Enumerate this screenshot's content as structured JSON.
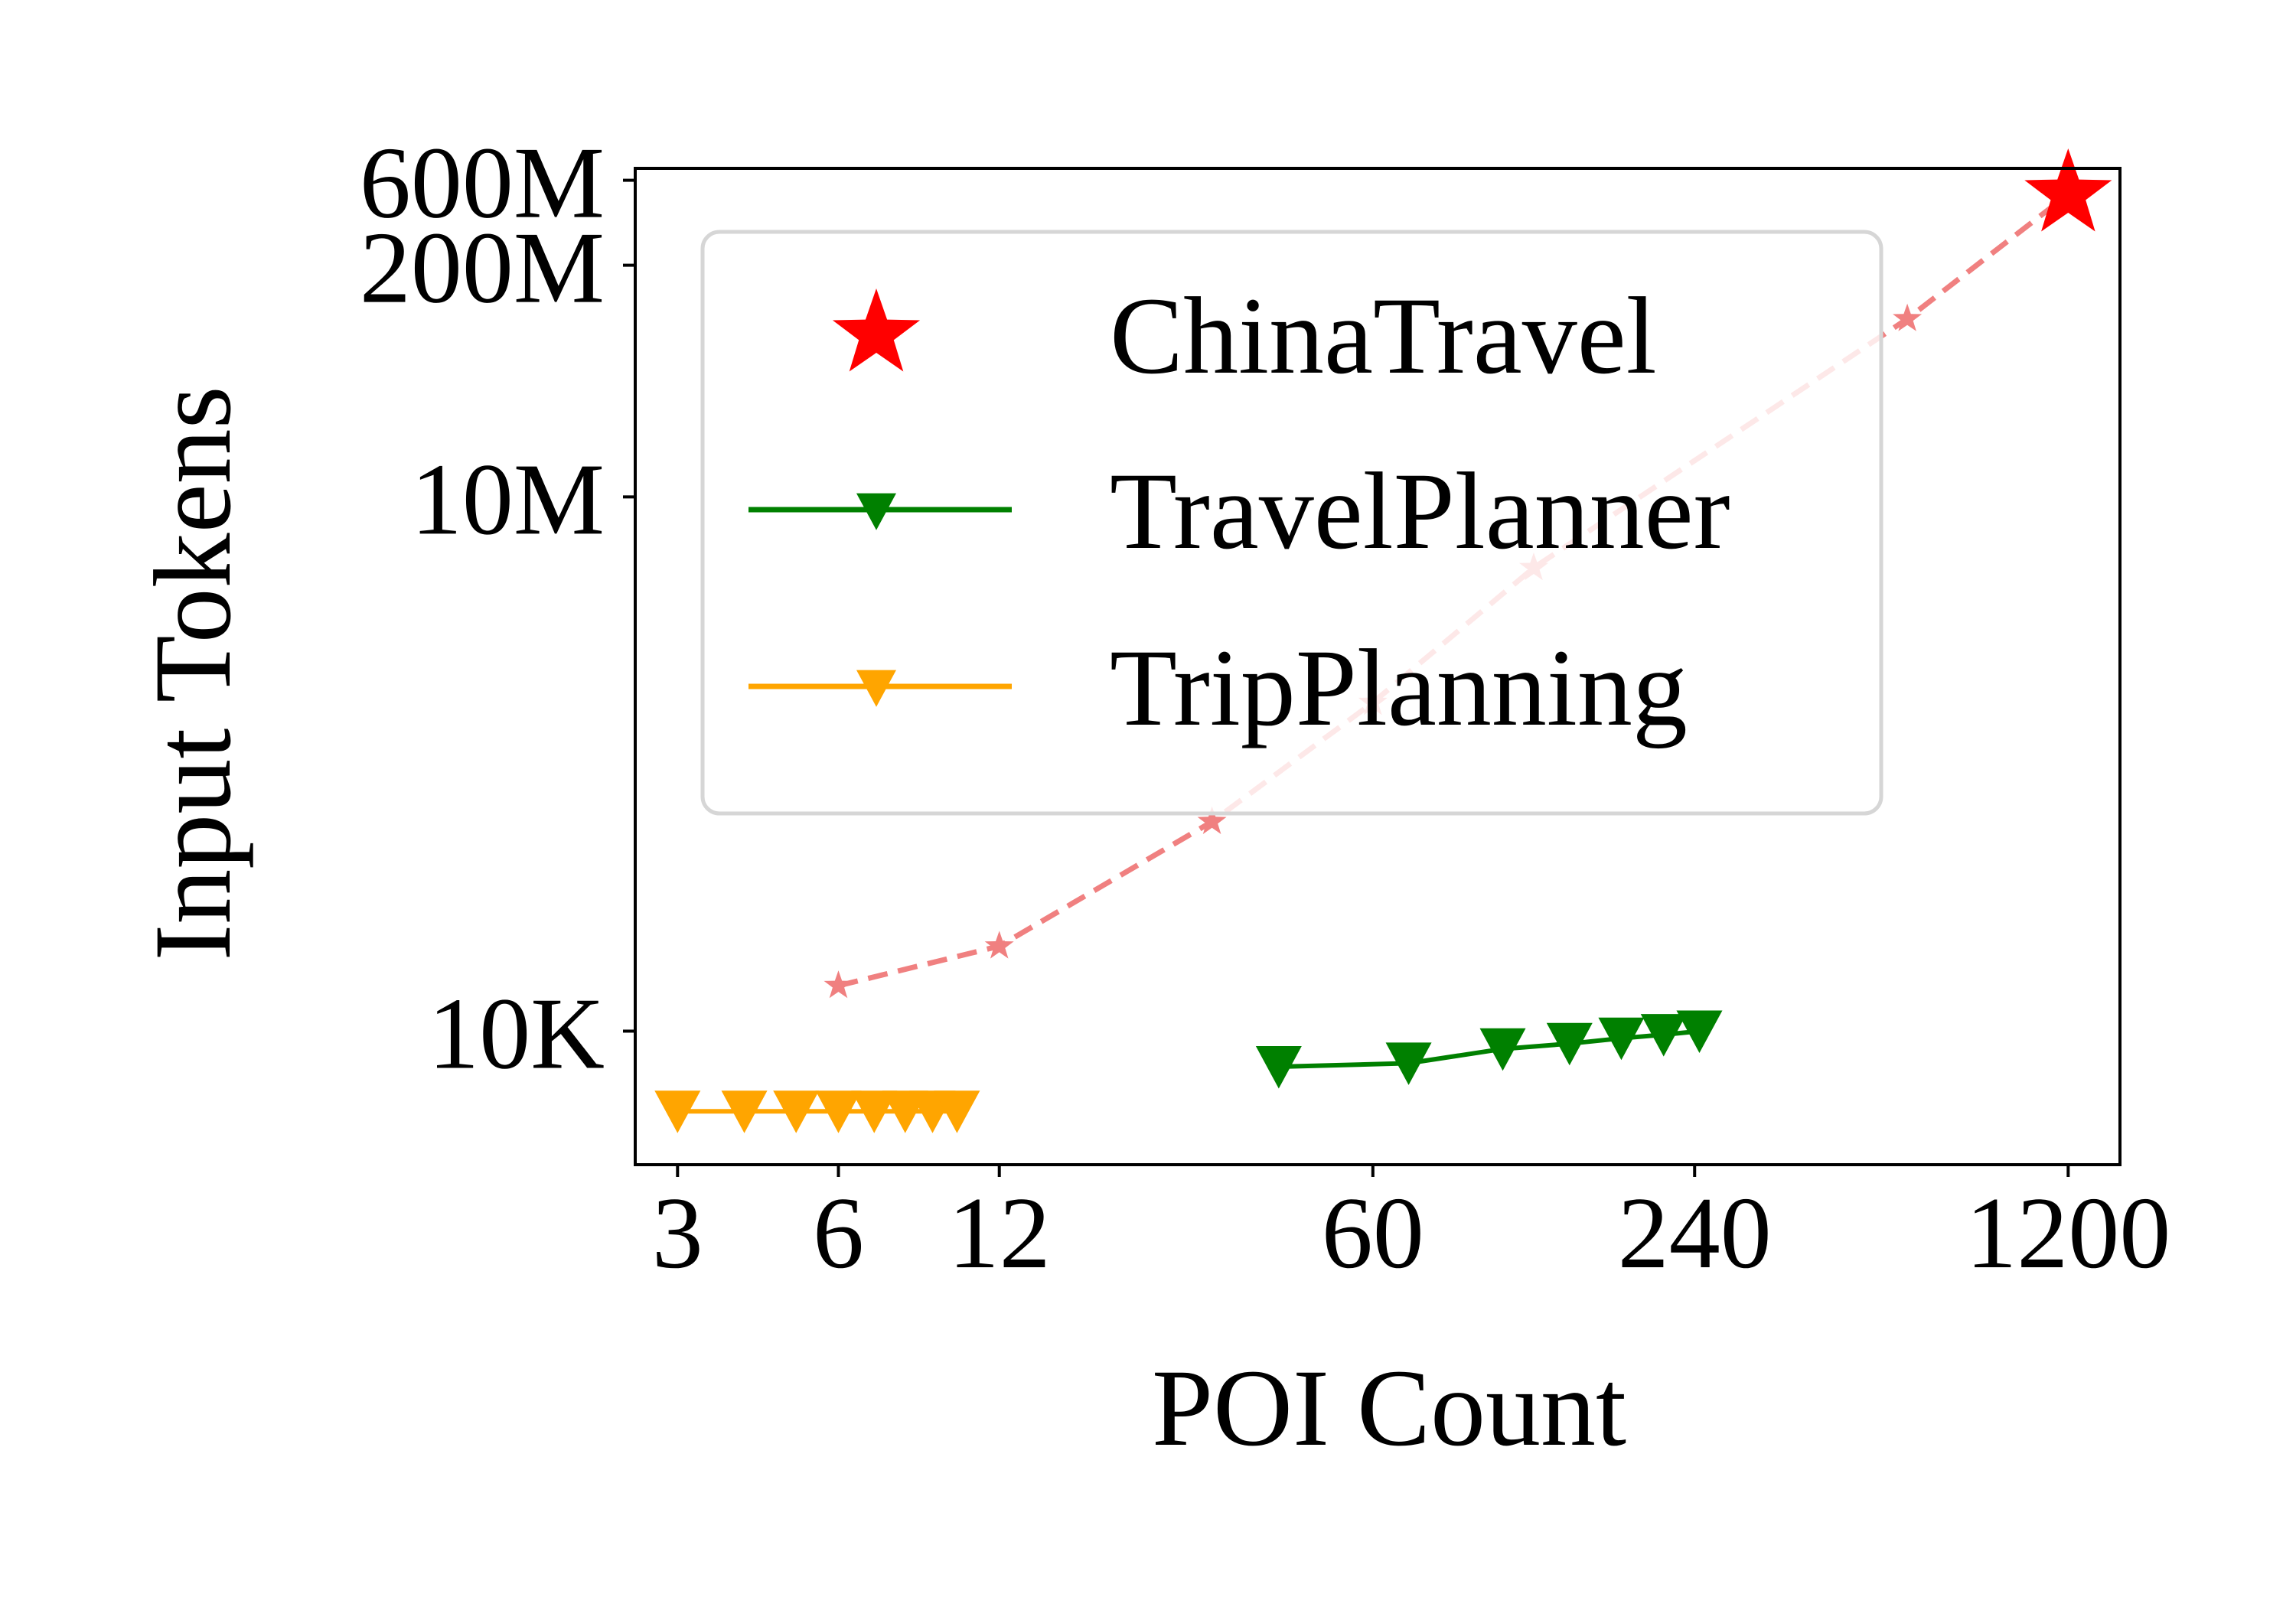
{
  "chart_data": {
    "type": "line",
    "xlabel": "POI Count",
    "ylabel": "Input Tokens",
    "x_scale": "log",
    "y_scale": "symlog",
    "xlim": [
      2.5,
      1500
    ],
    "ylim": [
      2500,
      700000000
    ],
    "xticks": [
      3,
      6,
      12,
      60,
      240,
      1200
    ],
    "xtick_labels": [
      "3",
      "6",
      "12",
      "60",
      "240",
      "1200"
    ],
    "yticks": [
      10000,
      10000000,
      200000000,
      600000000
    ],
    "ytick_labels": [
      "10K",
      "10M",
      "200M",
      "600M"
    ],
    "grid": false,
    "legend_position": "upper-left",
    "series": [
      {
        "name": "ChinaTravel",
        "color": "#ff0000",
        "line_color": "#f08080",
        "linestyle": "dashed",
        "marker": "star",
        "points": [
          {
            "x": 6,
            "y": 18000
          },
          {
            "x": 12,
            "y": 30000
          },
          {
            "x": 30,
            "y": 150000
          },
          {
            "x": 60,
            "y": 700000
          },
          {
            "x": 120,
            "y": 4000000
          },
          {
            "x": 600,
            "y": 100000000
          },
          {
            "x": 1200,
            "y": 500000000
          }
        ]
      },
      {
        "name": "TravelPlanner",
        "color": "#008000",
        "linestyle": "solid",
        "marker": "triangle-down",
        "points": [
          {
            "x": 40,
            "y": 8000
          },
          {
            "x": 70,
            "y": 8200
          },
          {
            "x": 105,
            "y": 9000
          },
          {
            "x": 140,
            "y": 9300
          },
          {
            "x": 175,
            "y": 9600
          },
          {
            "x": 210,
            "y": 9800
          },
          {
            "x": 245,
            "y": 10000
          }
        ]
      },
      {
        "name": "TripPlanning",
        "color": "#ffa500",
        "linestyle": "solid",
        "marker": "triangle-down",
        "points": [
          {
            "x": 3,
            "y": 5500
          },
          {
            "x": 4,
            "y": 5500
          },
          {
            "x": 5,
            "y": 5500
          },
          {
            "x": 6,
            "y": 5500
          },
          {
            "x": 7,
            "y": 5500
          },
          {
            "x": 8,
            "y": 5500
          },
          {
            "x": 9,
            "y": 5500
          },
          {
            "x": 10,
            "y": 5500
          }
        ]
      }
    ]
  }
}
